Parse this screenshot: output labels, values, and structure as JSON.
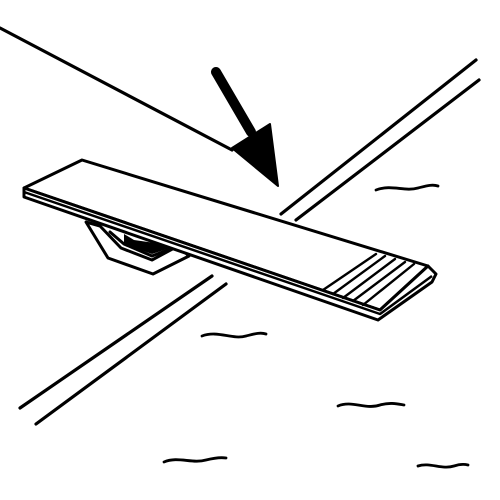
{
  "illustration": {
    "subject": "diving-board",
    "colors": {
      "stroke": "#000000",
      "fill": "#ffffff",
      "background": "#ffffff"
    },
    "icons": [
      "down-arrow-icon",
      "diving-board-icon",
      "water-ripple-icon",
      "pool-edge-line-icon"
    ]
  }
}
